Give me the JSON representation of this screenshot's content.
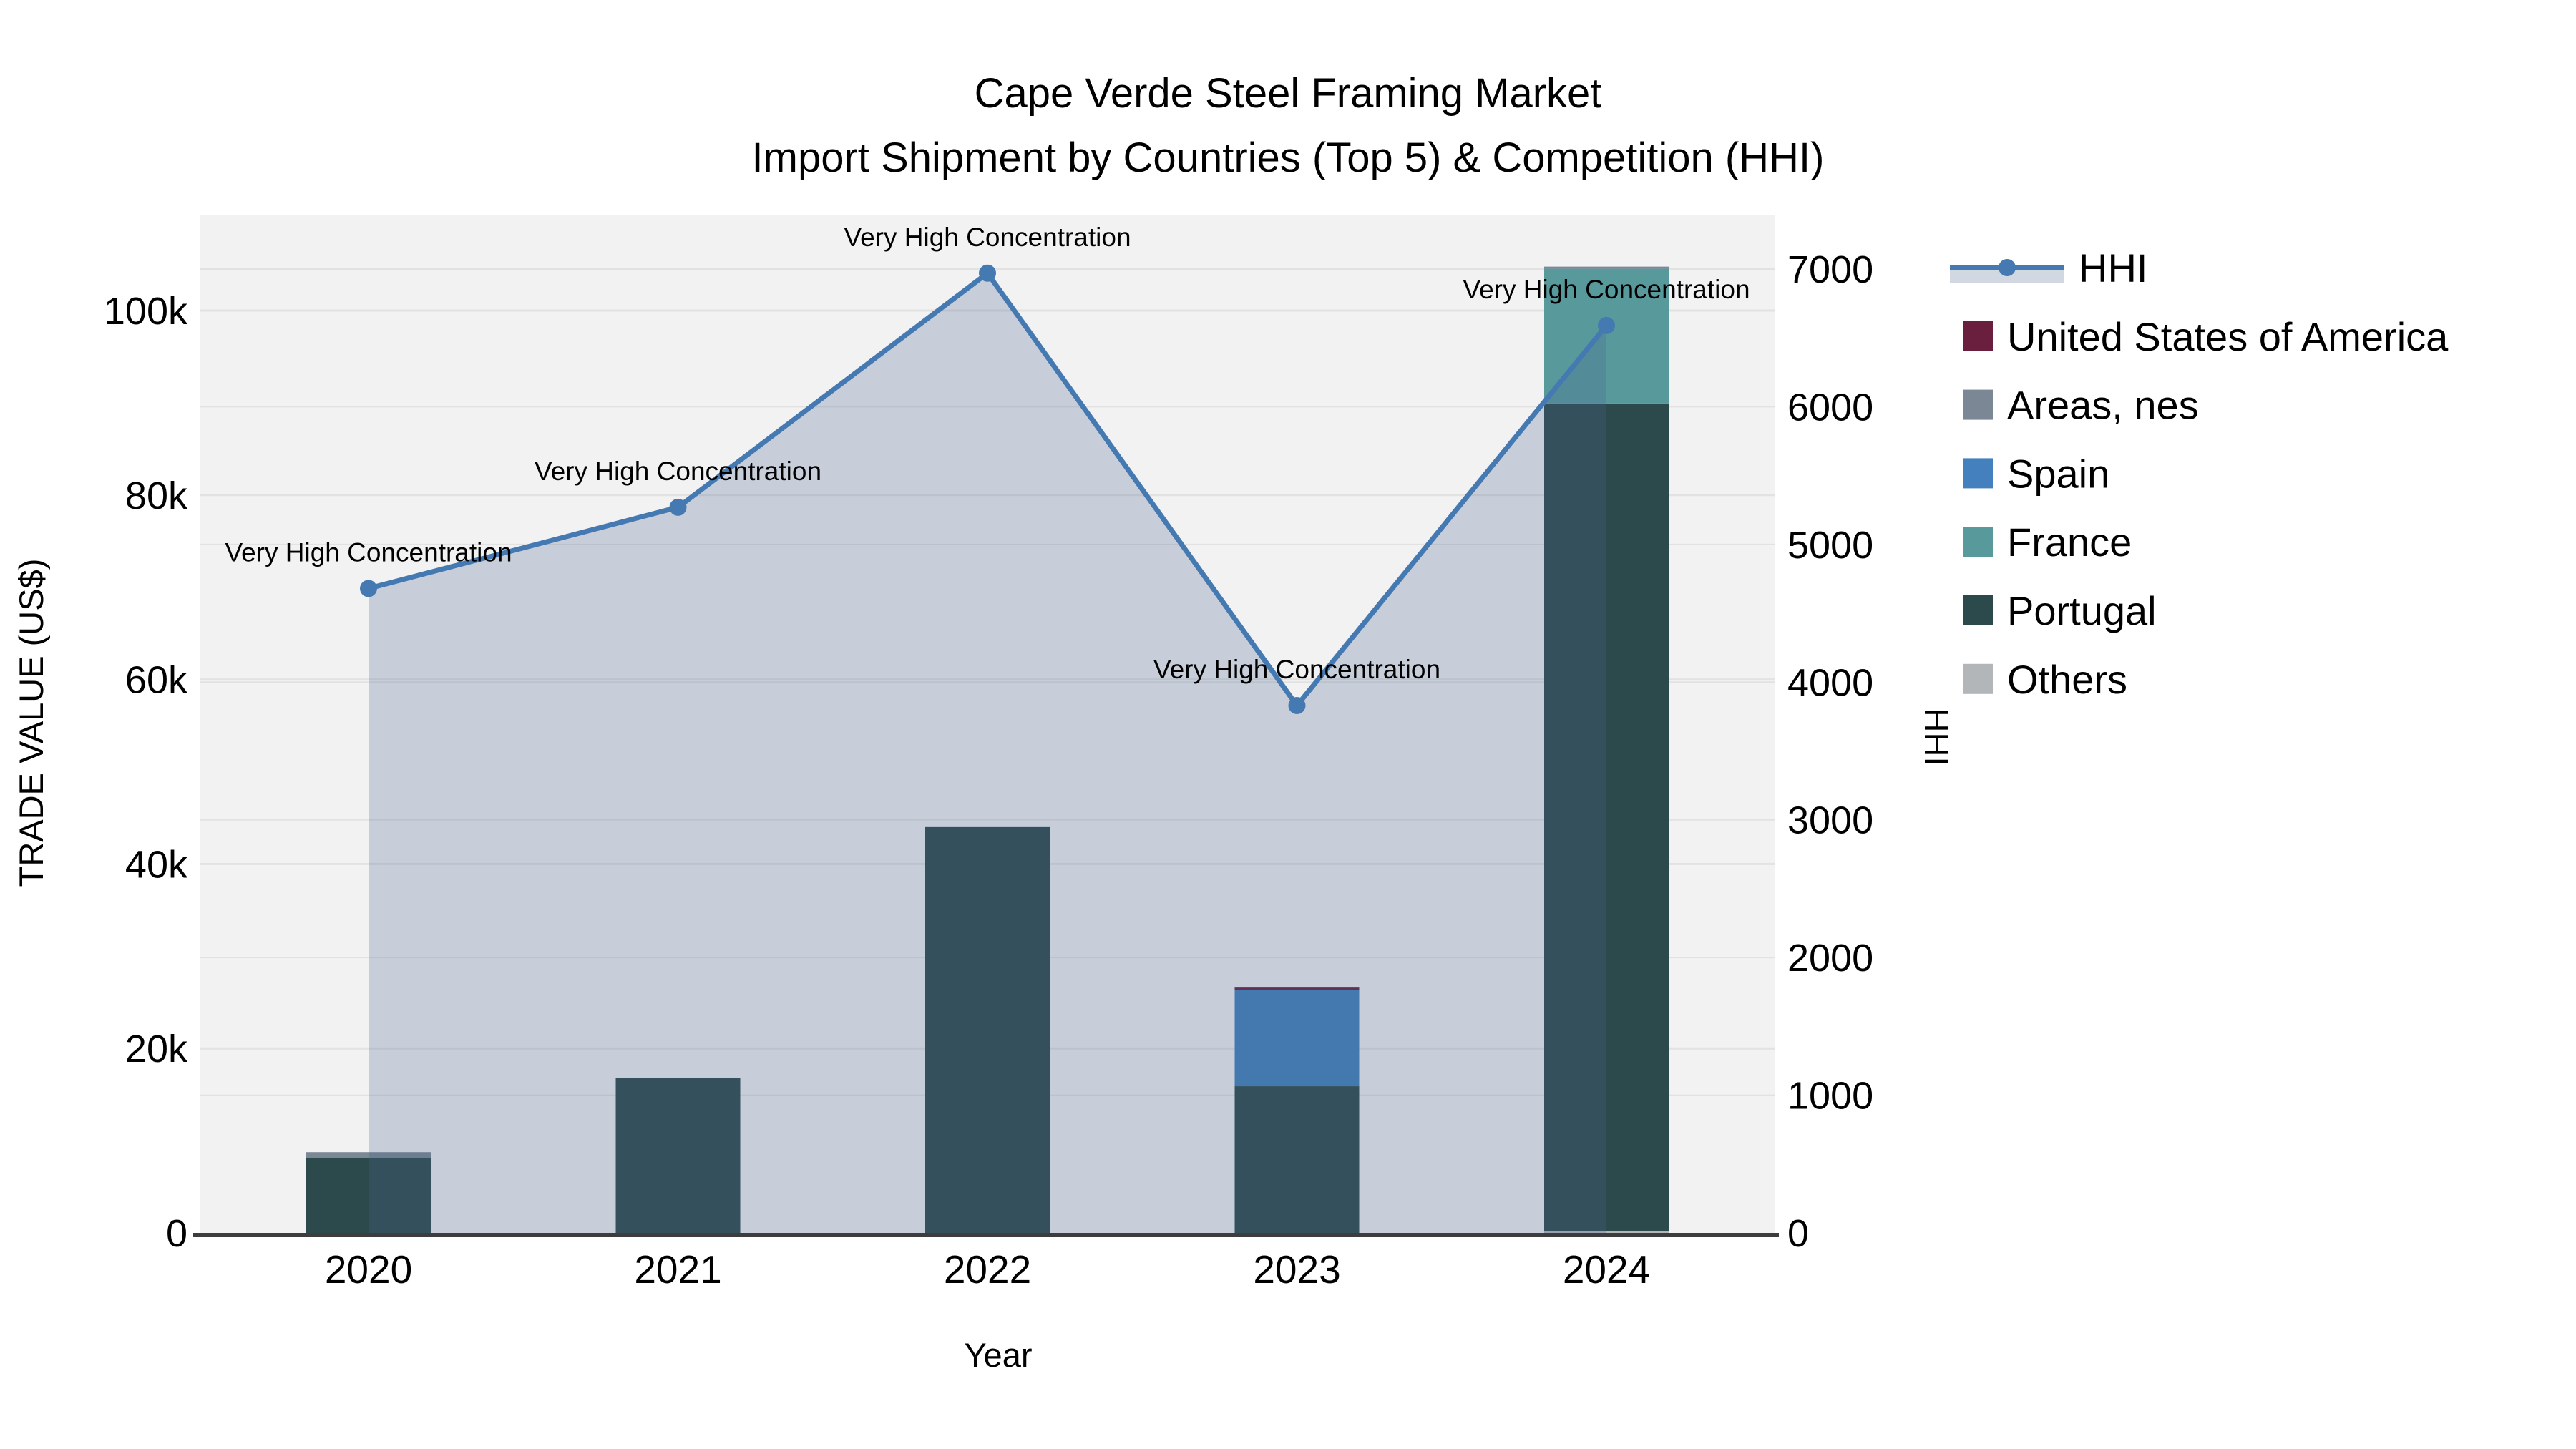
{
  "title": {
    "line1": "Cape Verde Steel Framing Market",
    "line2": "Import Shipment by Countries (Top 5) & Competition (HHI)"
  },
  "axes": {
    "x": {
      "label": "Year",
      "ticks": [
        "2020",
        "2021",
        "2022",
        "2023",
        "2024"
      ]
    },
    "y_left": {
      "label": "TRADE VALUE (US$)",
      "ticks": [
        {
          "label": "0",
          "value": 0
        },
        {
          "label": "20k",
          "value": 20000
        },
        {
          "label": "40k",
          "value": 40000
        },
        {
          "label": "60k",
          "value": 60000
        },
        {
          "label": "80k",
          "value": 80000
        },
        {
          "label": "100k",
          "value": 100000
        }
      ],
      "range": [
        0,
        110400
      ]
    },
    "y_right": {
      "label": "HHI",
      "ticks": [
        {
          "label": "0",
          "value": 0
        },
        {
          "label": "1000",
          "value": 1000
        },
        {
          "label": "2000",
          "value": 2000
        },
        {
          "label": "3000",
          "value": 3000
        },
        {
          "label": "4000",
          "value": 4000
        },
        {
          "label": "5000",
          "value": 5000
        },
        {
          "label": "6000",
          "value": 6000
        },
        {
          "label": "7000",
          "value": 7000
        }
      ],
      "range": [
        0,
        7395
      ]
    }
  },
  "legend": {
    "items": [
      {
        "label": "HHI",
        "type": "line",
        "color": "#4579b2"
      },
      {
        "label": "United States of America",
        "type": "square",
        "color": "#6b1f3f"
      },
      {
        "label": "Areas, nes",
        "type": "square",
        "color": "#7b8795"
      },
      {
        "label": "Spain",
        "type": "square",
        "color": "#4380bd"
      },
      {
        "label": "France",
        "type": "square",
        "color": "#58999c"
      },
      {
        "label": "Portugal",
        "type": "square",
        "color": "#2c4a4c"
      },
      {
        "label": "Others",
        "type": "square",
        "color": "#b3b6b9"
      }
    ]
  },
  "chart_data": {
    "type": "combo-stacked-bar-line",
    "categories": [
      "2020",
      "2021",
      "2022",
      "2023",
      "2024"
    ],
    "series": [
      {
        "name": "United States of America",
        "color": "#6b1f3f",
        "values": [
          0,
          0,
          0,
          300,
          0
        ]
      },
      {
        "name": "Areas, nes",
        "color": "#7b8795",
        "values": [
          650,
          0,
          0,
          0,
          230
        ]
      },
      {
        "name": "Spain",
        "color": "#4380bd",
        "values": [
          0,
          0,
          0,
          10400,
          0
        ]
      },
      {
        "name": "France",
        "color": "#58999c",
        "values": [
          0,
          0,
          0,
          0,
          14600
        ]
      },
      {
        "name": "Portugal",
        "color": "#2c4a4c",
        "values": [
          8100,
          16800,
          44000,
          15900,
          89700
        ]
      },
      {
        "name": "Others",
        "color": "#b3b6b9",
        "values": [
          0,
          0,
          0,
          0,
          230
        ]
      }
    ],
    "stack_order_bottom_to_top": [
      "Others",
      "Portugal",
      "France",
      "Spain",
      "Areas, nes",
      "United States of America"
    ],
    "bar_totals": [
      8750,
      16800,
      44000,
      26600,
      104760
    ],
    "hhi_line": {
      "name": "HHI",
      "color": "#4579b2",
      "fill_color": "rgba(70,100,140,0.25)",
      "values": [
        4680,
        5270,
        6970,
        3830,
        6590
      ],
      "point_annotation": "Very High Concentration"
    },
    "xlabel": "Year",
    "ylabel_left": "TRADE VALUE (US$)",
    "ylabel_right": "HHI",
    "grid": true,
    "legend_position": "right"
  },
  "annotations": {
    "text": "Very High Concentration"
  },
  "colors": {
    "page_background": "#ffffff",
    "plot_background": "#f2f2f3",
    "gridline": "#e2e2e2",
    "axis_line": "#3d3d3d"
  }
}
